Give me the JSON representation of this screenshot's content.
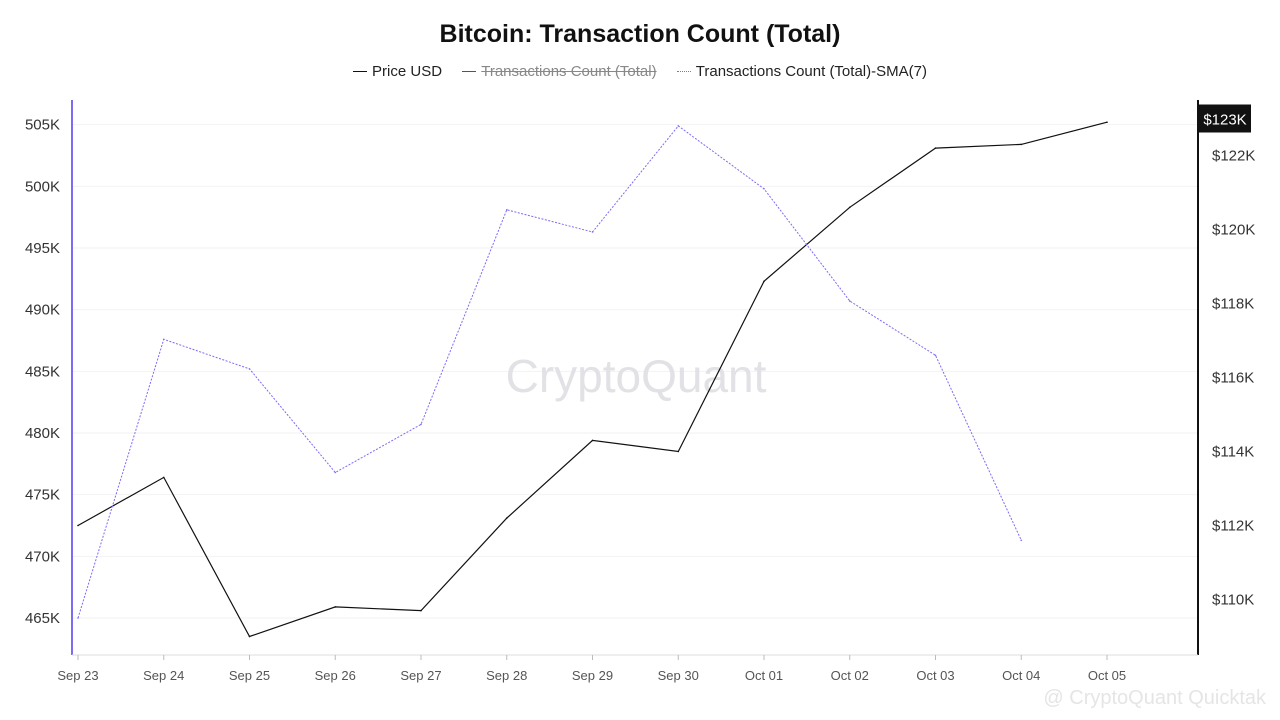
{
  "title": "Bitcoin: Transaction Count (Total)",
  "legend": [
    {
      "label": "Price USD",
      "color": "#111111",
      "style": "solid",
      "disabled": false
    },
    {
      "label": "Transactions Count (Total)",
      "color": "#555555",
      "style": "solid",
      "disabled": true
    },
    {
      "label": "Transactions Count (Total)-SMA(7)",
      "color": "#7b6cf6",
      "style": "dotted",
      "disabled": false
    }
  ],
  "watermark": "CryptoQuant",
  "footer_text": "@ CryptoQuant Quicktak",
  "colors": {
    "price": "#111111",
    "sma": "#7b6cf6",
    "left_axis": "#7b6cf6",
    "right_axis": "#111111",
    "grid": "#f2f2f2",
    "price_badge_bg": "#111111",
    "price_badge_text": "#ffffff",
    "tick_text": "#555555"
  },
  "chart_data": {
    "type": "line",
    "categories": [
      "Sep 23",
      "Sep 24",
      "Sep 25",
      "Sep 26",
      "Sep 27",
      "Sep 28",
      "Sep 29",
      "Sep 30",
      "Oct 01",
      "Oct 02",
      "Oct 03",
      "Oct 04",
      "Oct 05"
    ],
    "left_axis": {
      "ticks": [
        "505K",
        "500K",
        "495K",
        "490K",
        "485K",
        "480K",
        "475K",
        "470K",
        "465K"
      ],
      "tick_values": [
        505000,
        500000,
        495000,
        490000,
        485000,
        480000,
        475000,
        470000,
        465000
      ],
      "ylim": [
        462000,
        507000
      ]
    },
    "right_axis": {
      "ticks": [
        "$122K",
        "$120K",
        "$118K",
        "$116K",
        "$114K",
        "$112K",
        "$110K"
      ],
      "tick_values": [
        122000,
        120000,
        118000,
        116000,
        114000,
        112000,
        110000
      ],
      "ylim": [
        108500,
        123500
      ],
      "current_label": "$123K",
      "current_value": 123000
    },
    "series": [
      {
        "name": "Price USD",
        "axis": "right",
        "values": [
          112000,
          113300,
          109000,
          109800,
          109700,
          112200,
          114300,
          114000,
          118600,
          120600,
          122200,
          122300,
          122900
        ]
      },
      {
        "name": "Transactions Count (Total)-SMA(7)",
        "axis": "left",
        "values": [
          465000,
          487600,
          485200,
          476800,
          480700,
          498100,
          496300,
          504900,
          499800,
          490700,
          486300,
          471300,
          null
        ]
      }
    ]
  }
}
